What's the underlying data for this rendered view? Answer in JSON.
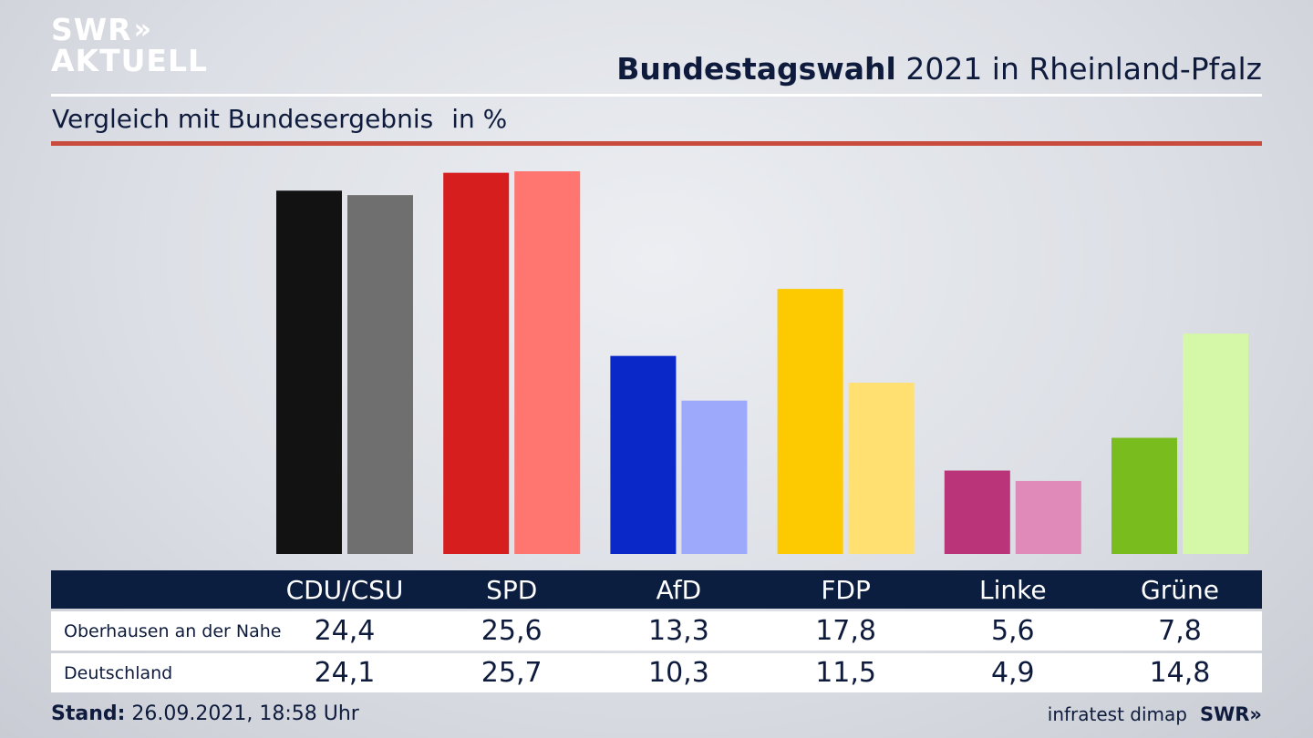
{
  "logo": {
    "line1": "SWR",
    "chevrons": "»",
    "line2": "AKTUELL"
  },
  "header": {
    "title_bold": "Bundestagswahl",
    "title_rest": " 2021 in Rheinland-Pfalz"
  },
  "subtitle": {
    "text": "Vergleich mit Bundesergebnis",
    "unit": "in %"
  },
  "footer": {
    "stand_label": "Stand:",
    "stand_value": " 26.09.2021, 18:58 Uhr",
    "source": "infratest dimap",
    "brand": "SWR»"
  },
  "chart_data": {
    "type": "bar",
    "title": "Bundestagswahl 2021 in Rheinland-Pfalz",
    "subtitle": "Vergleich mit Bundesergebnis",
    "unit": "in %",
    "categories": [
      "CDU/CSU",
      "SPD",
      "AfD",
      "FDP",
      "Linke",
      "Grüne"
    ],
    "series": [
      {
        "name": "Oberhausen an der Nahe",
        "values": [
          "24,4",
          "25,6",
          "13,3",
          "17,8",
          "5,6",
          "7,8"
        ],
        "numeric": [
          24.4,
          25.6,
          13.3,
          17.8,
          5.6,
          7.8
        ],
        "colors": [
          "#121212",
          "#d71e1e",
          "#0a28c8",
          "#fdc900",
          "#b93478",
          "#78bc1e"
        ]
      },
      {
        "name": "Deutschland",
        "values": [
          "24,1",
          "25,7",
          "10,3",
          "11,5",
          "4,9",
          "14,8"
        ],
        "numeric": [
          24.1,
          25.7,
          10.3,
          11.5,
          4.9,
          14.8
        ],
        "colors": [
          "#6f6f6f",
          "#ff7570",
          "#9daafc",
          "#ffe070",
          "#e08ab9",
          "#d5f7a8"
        ]
      }
    ],
    "ylim": [
      0,
      25.7
    ],
    "legend": "table-below"
  }
}
